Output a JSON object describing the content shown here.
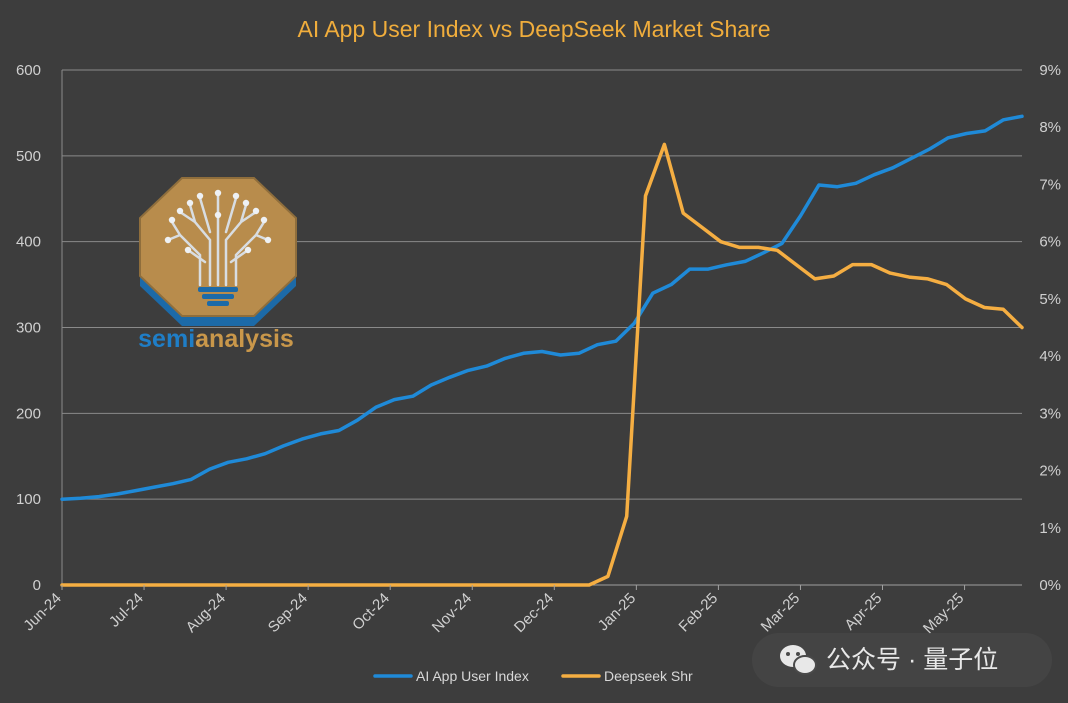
{
  "chart_data": {
    "type": "line",
    "title": "AI App User Index vs DeepSeek Market Share",
    "x_labels": [
      "Jun-24",
      "Jul-24",
      "Aug-24",
      "Sep-24",
      "Oct-24",
      "Nov-24",
      "Dec-24",
      "Jan-25",
      "Feb-25",
      "Mar-25",
      "Apr-25",
      "May-25"
    ],
    "y_left": {
      "ticks": [
        "0",
        "100",
        "200",
        "300",
        "400",
        "500",
        "600"
      ],
      "min": 0,
      "max": 600
    },
    "y_right": {
      "ticks": [
        "0%",
        "1%",
        "2%",
        "3%",
        "4%",
        "5%",
        "6%",
        "7%",
        "8%",
        "9%"
      ],
      "min": 0,
      "max": 9
    },
    "grid": true,
    "legend_position": "bottom",
    "series": [
      {
        "name": "AI App User Index",
        "axis": "left",
        "color": "#1f8ad8",
        "values": [
          100,
          101,
          103,
          106,
          110,
          114,
          118,
          123,
          135,
          143,
          147,
          153,
          162,
          170,
          176,
          180,
          192,
          207,
          216,
          220,
          233,
          242,
          250,
          255,
          264,
          270,
          272,
          268,
          270,
          280,
          284,
          305,
          340,
          350,
          368,
          368,
          373,
          377,
          387,
          398,
          430,
          466,
          464,
          468,
          478,
          486,
          497,
          508,
          521,
          526,
          529,
          542,
          546
        ]
      },
      {
        "name": "Deepseek Shr",
        "axis": "right",
        "color": "#f5ae42",
        "values": [
          0,
          0,
          0,
          0,
          0,
          0,
          0,
          0,
          0,
          0,
          0,
          0,
          0,
          0,
          0,
          0,
          0,
          0,
          0,
          0,
          0,
          0,
          0,
          0,
          0,
          0,
          0,
          0,
          0,
          0.15,
          1.2,
          6.8,
          7.7,
          6.5,
          6.25,
          6.0,
          5.9,
          5.9,
          5.85,
          5.6,
          5.35,
          5.4,
          5.6,
          5.6,
          5.45,
          5.38,
          5.35,
          5.25,
          5.0,
          4.85,
          4.82,
          4.5
        ]
      }
    ]
  },
  "logo": {
    "text_a": "semi",
    "text_b": "analysis"
  },
  "watermark": {
    "text": "公众号 · 量子位"
  }
}
